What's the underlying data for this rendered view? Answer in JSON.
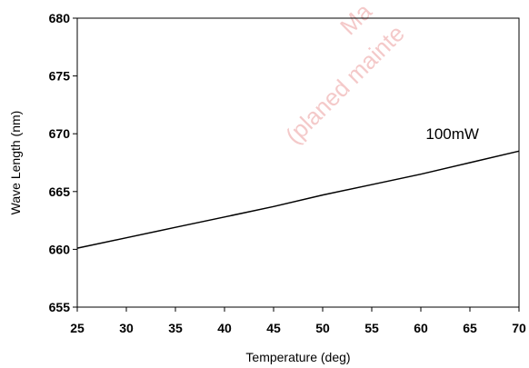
{
  "chart_data": {
    "type": "line",
    "title": "",
    "xlabel": "Temperature (deg)",
    "ylabel": "Wave Length (nm)",
    "xlim": [
      25,
      70
    ],
    "ylim": [
      655,
      680
    ],
    "xticks": [
      25,
      30,
      35,
      40,
      45,
      50,
      55,
      60,
      65,
      70
    ],
    "yticks": [
      655,
      660,
      665,
      670,
      675,
      680
    ],
    "grid": false,
    "series": [
      {
        "name": "100mW",
        "x": [
          25,
          30,
          35,
          40,
          45,
          50,
          55,
          60,
          65,
          70
        ],
        "y": [
          660.1,
          661.0,
          661.9,
          662.8,
          663.7,
          664.7,
          665.6,
          666.5,
          667.5,
          668.5
        ],
        "color": "#000000"
      }
    ]
  },
  "watermark": {
    "line1": "Ma",
    "line2": "(planed mainte"
  }
}
